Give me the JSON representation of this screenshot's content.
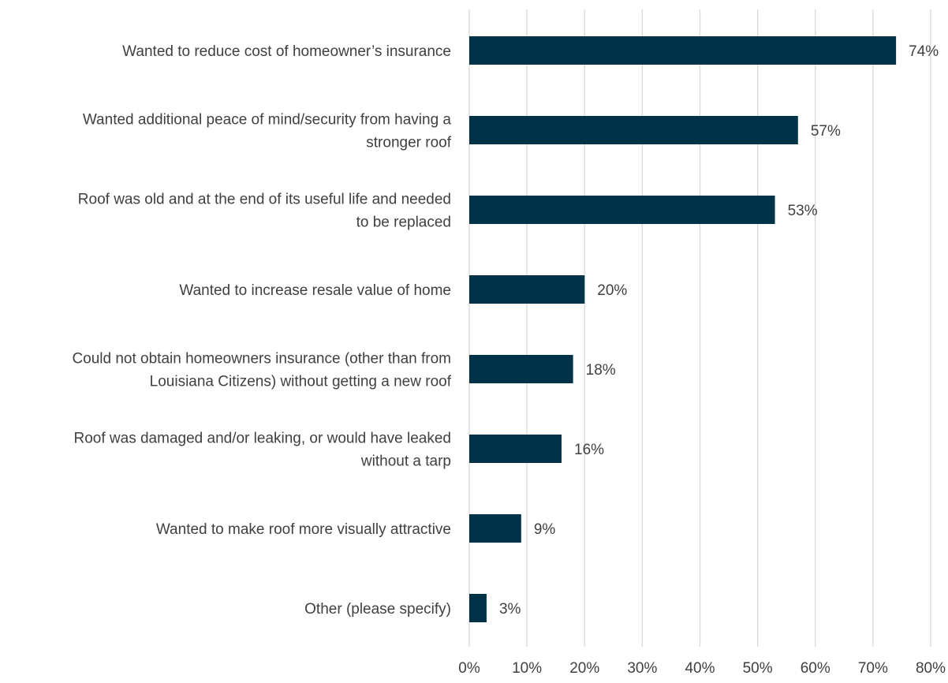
{
  "chart_data": {
    "type": "bar",
    "orientation": "horizontal",
    "categories": [
      "Wanted to reduce cost of homeowner’s insurance",
      "Wanted additional peace of mind/security from having a stronger roof",
      "Roof was old and at the end of its useful life and needed to be replaced",
      "Wanted to increase resale value of home",
      "Could not obtain homeowners insurance (other than from Louisiana Citizens) without getting a new roof",
      "Roof was damaged and/or leaking, or would have leaked without a tarp",
      "Wanted to make roof more visually attractive",
      "Other (please specify)"
    ],
    "category_lines": [
      [
        "Wanted to reduce cost of homeowner’s insurance"
      ],
      [
        "Wanted additional peace of mind/security from having a",
        "stronger roof"
      ],
      [
        "Roof was old and at the end of its useful life and needed",
        "to be replaced"
      ],
      [
        "Wanted to increase resale value of home"
      ],
      [
        "Could not obtain homeowners insurance (other than from",
        "Louisiana Citizens) without getting a new roof"
      ],
      [
        "Roof was damaged and/or leaking, or would have leaked",
        "without a tarp"
      ],
      [
        "Wanted to make roof more visually attractive"
      ],
      [
        "Other (please specify)"
      ]
    ],
    "values": [
      74,
      57,
      53,
      20,
      18,
      16,
      9,
      3
    ],
    "value_labels": [
      "74%",
      "57%",
      "53%",
      "20%",
      "18%",
      "16%",
      "9%",
      "3%"
    ],
    "xlim": [
      0,
      80
    ],
    "x_ticks": [
      0,
      10,
      20,
      30,
      40,
      50,
      60,
      70,
      80
    ],
    "x_tick_labels": [
      "0%",
      "10%",
      "20%",
      "30%",
      "40%",
      "50%",
      "60%",
      "70%",
      "80%"
    ],
    "title": "",
    "xlabel": "",
    "ylabel": "",
    "grid": "vertical",
    "legend": "none",
    "colors": {
      "bar": "#003347",
      "grid": "#d9d9d9",
      "text": "#404040"
    }
  }
}
